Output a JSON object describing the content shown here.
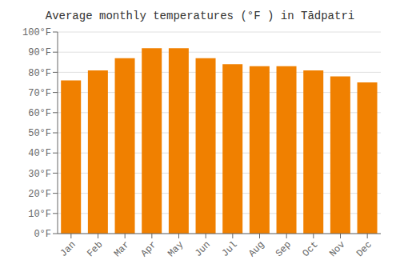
{
  "chart_data": {
    "type": "bar",
    "title": "Average monthly temperatures (°F ) in Tādpatri",
    "categories": [
      "Jan",
      "Feb",
      "Mar",
      "Apr",
      "May",
      "Jun",
      "Jul",
      "Aug",
      "Sep",
      "Oct",
      "Nov",
      "Dec"
    ],
    "values": [
      76,
      81,
      87,
      92,
      92,
      87,
      84,
      83,
      83,
      81,
      78,
      75
    ],
    "color": "#F08000",
    "ylim": [
      0,
      100
    ],
    "yticks": [
      {
        "value": 0,
        "label": "0°F"
      },
      {
        "value": 10,
        "label": "10°F"
      },
      {
        "value": 20,
        "label": "20°F"
      },
      {
        "value": 30,
        "label": "30°F"
      },
      {
        "value": 40,
        "label": "40°F"
      },
      {
        "value": 50,
        "label": "50°F"
      },
      {
        "value": 60,
        "label": "60°F"
      },
      {
        "value": 70,
        "label": "70°F"
      },
      {
        "value": 80,
        "label": "80°F"
      },
      {
        "value": 90,
        "label": "90°F"
      },
      {
        "value": 100,
        "label": "100°F"
      }
    ],
    "grid": true
  }
}
